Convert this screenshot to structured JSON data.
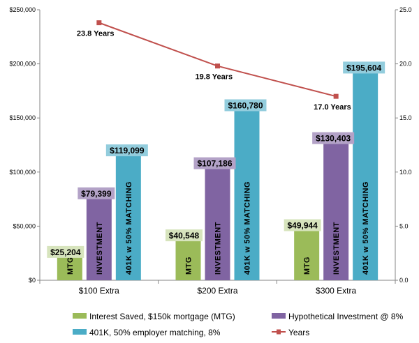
{
  "chart_data": {
    "type": "bar",
    "categories": [
      "$100 Extra",
      "$200 Extra",
      "$300 Extra"
    ],
    "series": [
      {
        "name": "Interest Saved, $150k mortgage (MTG)",
        "values": [
          25204,
          40548,
          49944
        ],
        "labels": [
          "$25,204",
          "$40,548",
          "$49,944"
        ],
        "bar_text": "MTG",
        "color": "#9BBB59",
        "label_bg": "#D7E4BD"
      },
      {
        "name": "Hypothetical Investment @ 8%",
        "values": [
          79399,
          107186,
          130403
        ],
        "labels": [
          "$79,399",
          "$107,186",
          "$130,403"
        ],
        "bar_text": "INVESTMENT",
        "color": "#8064A2",
        "label_bg": "#B3A2C7"
      },
      {
        "name": "401K, 50% employer matching, 8%",
        "values": [
          119099,
          160780,
          195604
        ],
        "labels": [
          "$119,099",
          "$160,780",
          "$195,604"
        ],
        "bar_text": "401K w 50% MATCHING",
        "color": "#4BACC6",
        "label_bg": "#93CDDD"
      }
    ],
    "line_series": {
      "name": "Years",
      "values": [
        23.8,
        19.8,
        17.0
      ],
      "labels": [
        "23.8 Years",
        "19.8 Years",
        "17.0 Years"
      ],
      "color": "#C0504D",
      "axis": "secondary"
    },
    "y_axis": {
      "ylim": [
        0,
        250000
      ],
      "ticks": [
        "$0",
        "$50,000",
        "$100,000",
        "$150,000",
        "$200,000",
        "$250,000"
      ]
    },
    "y2_axis": {
      "ylim": [
        0,
        25
      ],
      "ticks": [
        "0.0",
        "5.0",
        "10.0",
        "15.0",
        "20.0",
        "25.0"
      ]
    },
    "grid": false,
    "legend": "bottom"
  }
}
